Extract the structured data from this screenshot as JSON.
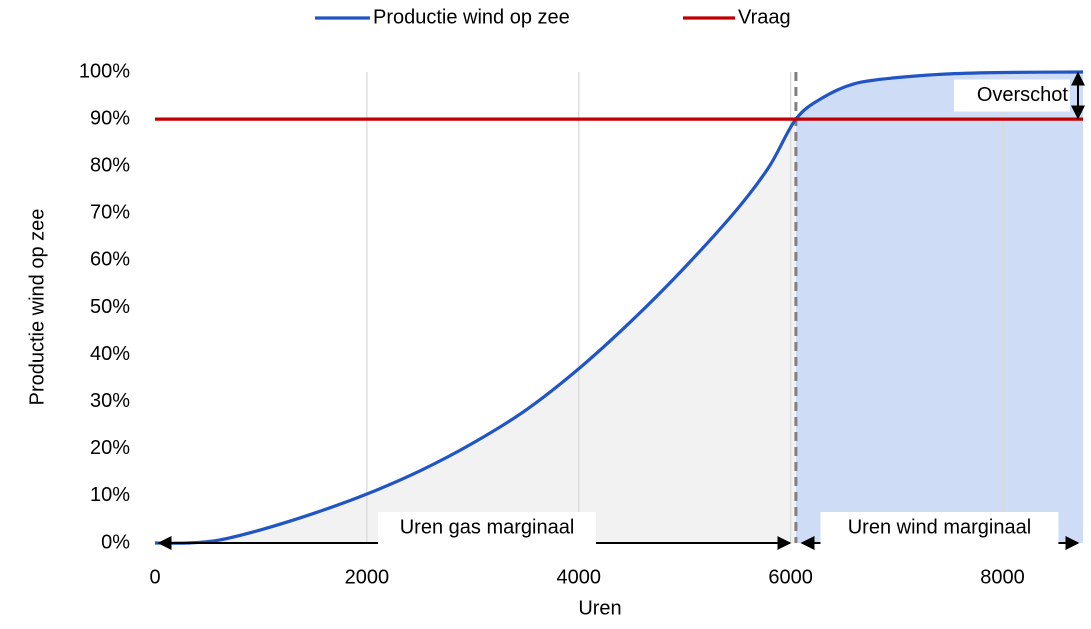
{
  "chart_data": {
    "type": "line",
    "x": [
      0,
      300,
      600,
      1000,
      1500,
      2000,
      2500,
      3000,
      3500,
      4000,
      4500,
      5000,
      5500,
      5800,
      6050,
      6300,
      6600,
      7000,
      7500,
      8000,
      8760
    ],
    "series": [
      {
        "name": "Productie wind op zee",
        "color": "#2255c4",
        "values": [
          0,
          0,
          0.6,
          2.8,
          6.3,
          10.4,
          15.3,
          21.2,
          28.2,
          37,
          47.2,
          58.5,
          71,
          80,
          90,
          94.5,
          97.5,
          98.8,
          99.6,
          99.9,
          100
        ]
      },
      {
        "name": "Vraag",
        "color": "#c00000",
        "values": [
          90,
          90,
          90,
          90,
          90,
          90,
          90,
          90,
          90,
          90,
          90,
          90,
          90,
          90,
          90,
          90,
          90,
          90,
          90,
          90,
          90
        ]
      }
    ],
    "xlabel": "Uren",
    "ylabel": "Productie wind op zee",
    "xlim": [
      0,
      8760
    ],
    "ylim": [
      0,
      100
    ],
    "xticks": [
      0,
      2000,
      4000,
      6000,
      8000
    ],
    "yticks": [
      {
        "value": 0,
        "label": "0%"
      },
      {
        "value": 10,
        "label": "10%"
      },
      {
        "value": 20,
        "label": "20%"
      },
      {
        "value": 30,
        "label": "30%"
      },
      {
        "value": 40,
        "label": "40%"
      },
      {
        "value": 50,
        "label": "50%"
      },
      {
        "value": 60,
        "label": "60%"
      },
      {
        "value": 70,
        "label": "70%"
      },
      {
        "value": 80,
        "label": "80%"
      },
      {
        "value": 90,
        "label": "90%"
      },
      {
        "value": 100,
        "label": "100%"
      }
    ],
    "xgrid": true,
    "marker_x": 6050,
    "annotations": [
      {
        "text": "Uren gas marginaal"
      },
      {
        "text": "Uren wind marginaal"
      },
      {
        "text": "Overschot"
      }
    ]
  }
}
